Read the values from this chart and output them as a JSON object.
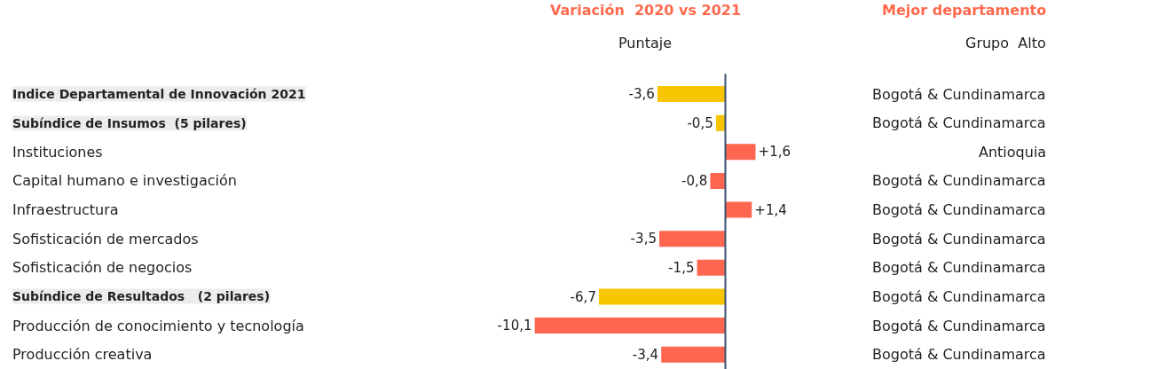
{
  "chart_data": {
    "type": "bar",
    "orientation": "horizontal",
    "title": "Variación  2020 vs 2021",
    "subtitle": "Puntaje",
    "categories": [
      "Indice Departamental de Innovación 2021",
      "Subíndice de Insumos  (5 pilares)",
      "Instituciones",
      "Capital humano e investigación",
      "Infraestructura",
      "Sofisticación de mercados",
      "Sofisticación de negocios",
      "Subíndice de Resultados   (2 pilares)",
      "Producción de conocimiento y tecnología",
      "Producción creativa"
    ],
    "values": [
      -3.6,
      -0.5,
      1.6,
      -0.8,
      1.4,
      -3.5,
      -1.5,
      -6.7,
      -10.1,
      -3.4
    ],
    "value_labels": [
      "-3,6",
      "-0,5",
      "+1,6",
      "-0,8",
      "+1,4",
      "-3,5",
      "-1,5",
      "-6,7",
      "-10,1",
      "-3,4"
    ],
    "ref_lines": [
      {
        "axis": "x",
        "value": 0,
        "color": "#3a5070"
      }
    ],
    "colors": [
      "#f7c600",
      "#f7c600",
      "#ff6650",
      "#ff6650",
      "#ff6650",
      "#ff6650",
      "#ff6650",
      "#f7c600",
      "#ff6650",
      "#ff6650"
    ],
    "annotations": [
      "Mejor departamento",
      "Grupo  Alto",
      "Bogotá & Cundinamarca",
      "Bogotá & Cundinamarca",
      "Antioquia",
      "Bogotá & Cundinamarca",
      "Bogotá & Cundinamarca",
      "Bogotá & Cundinamarca",
      "Bogotá & Cundinamarca",
      "Bogotá & Cundinamarca",
      "Bogotá & Cundinamarca",
      "Bogotá & Cundinamarca"
    ]
  }
}
